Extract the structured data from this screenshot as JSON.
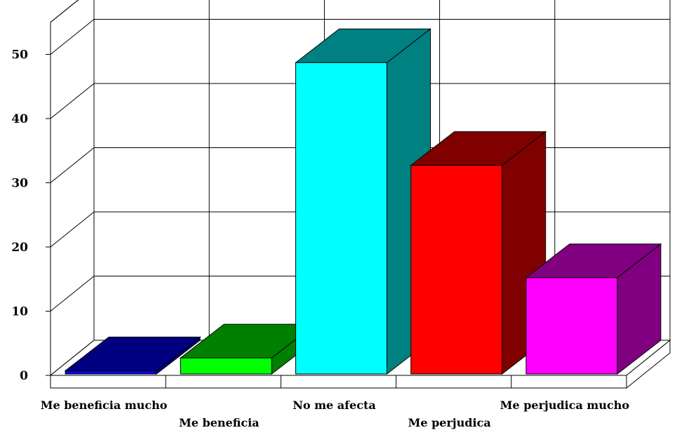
{
  "chart_data": {
    "type": "bar",
    "title": "",
    "xlabel": "",
    "ylabel": "",
    "categories": [
      "Me beneficia mucho",
      "Me beneficia",
      "No me afecta",
      "Me perjudica",
      "Me perjudica mucho"
    ],
    "values": [
      0.5,
      2.5,
      48.5,
      32.5,
      15
    ],
    "ylim": [
      0,
      55
    ],
    "yticks": [
      0,
      10,
      20,
      30,
      40,
      50
    ],
    "grid": true,
    "three_d": true,
    "legend": "none",
    "colors": {
      "front": [
        "#0000ff",
        "#00ff00",
        "#00ffff",
        "#ff0000",
        "#ff00ff"
      ],
      "side": [
        "#000080",
        "#008000",
        "#008080",
        "#800000",
        "#800080"
      ]
    }
  }
}
